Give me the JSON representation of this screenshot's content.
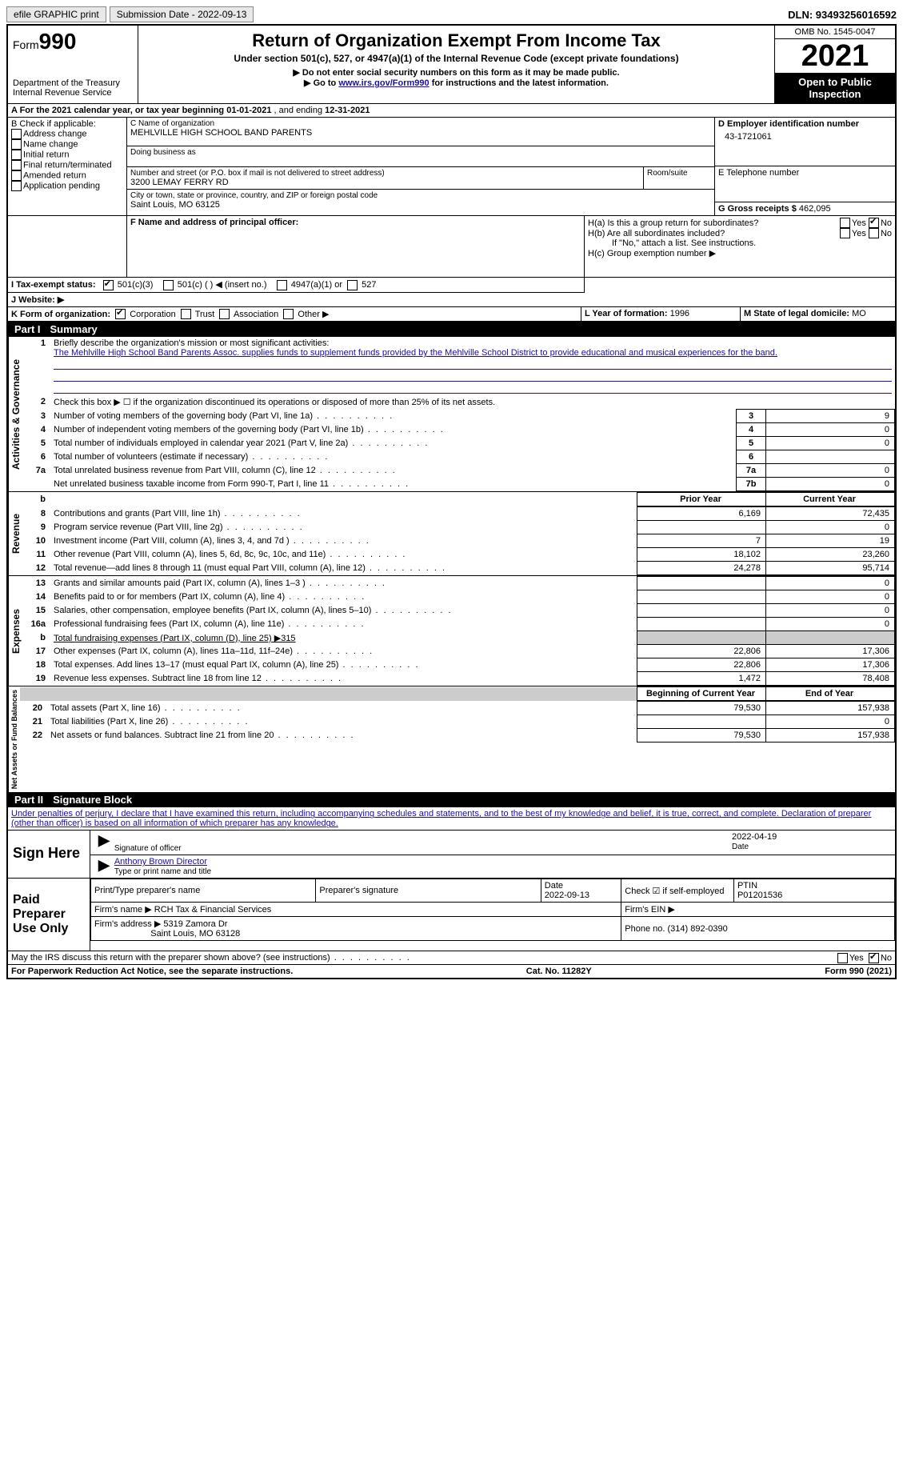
{
  "topbar": {
    "efile": "efile GRAPHIC print",
    "submission_label": "Submission Date - 2022-09-13",
    "dln_label": "DLN: 93493256016592"
  },
  "header": {
    "form_prefix": "Form",
    "form_number": "990",
    "dept": "Department of the Treasury",
    "irs": "Internal Revenue Service",
    "title": "Return of Organization Exempt From Income Tax",
    "subtitle": "Under section 501(c), 527, or 4947(a)(1) of the Internal Revenue Code (except private foundations)",
    "note1": "▶ Do not enter social security numbers on this form as it may be made public.",
    "note2_pre": "▶ Go to ",
    "note2_link": "www.irs.gov/Form990",
    "note2_post": " for instructions and the latest information.",
    "omb": "OMB No. 1545-0047",
    "year": "2021",
    "open": "Open to Public Inspection"
  },
  "periodA": {
    "text_pre": "A For the 2021 calendar year, or tax year beginning ",
    "begin": "01-01-2021",
    "mid": " , and ending ",
    "end": "12-31-2021"
  },
  "sectionB": {
    "label": "B Check if applicable:",
    "items": [
      "Address change",
      "Name change",
      "Initial return",
      "Final return/terminated",
      "Amended return",
      "Application pending"
    ]
  },
  "sectionC": {
    "name_label": "C Name of organization",
    "name": "MEHLVILLE HIGH SCHOOL BAND PARENTS",
    "dba_label": "Doing business as",
    "addr_label": "Number and street (or P.O. box if mail is not delivered to street address)",
    "room_label": "Room/suite",
    "addr": "3200 LEMAY FERRY RD",
    "city_label": "City or town, state or province, country, and ZIP or foreign postal code",
    "city": "Saint Louis, MO  63125"
  },
  "sectionD": {
    "label": "D Employer identification number",
    "value": "43-1721061"
  },
  "sectionE": {
    "label": "E Telephone number"
  },
  "sectionG": {
    "label": "G Gross receipts $",
    "value": "462,095"
  },
  "sectionF": {
    "label": "F Name and address of principal officer:"
  },
  "sectionH": {
    "a": "H(a)  Is this a group return for subordinates?",
    "b": "H(b)  Are all subordinates included?",
    "b_note": "If \"No,\" attach a list. See instructions.",
    "c": "H(c)  Group exemption number ▶",
    "yes": "Yes",
    "no": "No"
  },
  "sectionI": {
    "label": "I   Tax-exempt status:",
    "opts": [
      "501(c)(3)",
      "501(c) (  ) ◀ (insert no.)",
      "4947(a)(1) or",
      "527"
    ]
  },
  "sectionJ": {
    "label": "J   Website: ▶"
  },
  "sectionK": {
    "label": "K Form of organization:",
    "opts": [
      "Corporation",
      "Trust",
      "Association",
      "Other ▶"
    ]
  },
  "sectionL": {
    "label": "L Year of formation:",
    "value": "1996"
  },
  "sectionM": {
    "label": "M State of legal domicile:",
    "value": "MO"
  },
  "part1": {
    "num": "Part I",
    "title": "Summary"
  },
  "summary": {
    "l1_label": "Briefly describe the organization's mission or most significant activities:",
    "l1_text": "The Mehlville High School Band Parents Assoc. supplies funds to supplement funds provided by the Mehlville School District to provide educational and musical experiences for the band.",
    "l2": "Check this box ▶ ☐ if the organization discontinued its operations or disposed of more than 25% of its net assets.",
    "rows_gov": [
      {
        "n": "3",
        "t": "Number of voting members of the governing body (Part VI, line 1a)",
        "box": "3",
        "v": "9"
      },
      {
        "n": "4",
        "t": "Number of independent voting members of the governing body (Part VI, line 1b)",
        "box": "4",
        "v": "0"
      },
      {
        "n": "5",
        "t": "Total number of individuals employed in calendar year 2021 (Part V, line 2a)",
        "box": "5",
        "v": "0"
      },
      {
        "n": "6",
        "t": "Total number of volunteers (estimate if necessary)",
        "box": "6",
        "v": ""
      },
      {
        "n": "7a",
        "t": "Total unrelated business revenue from Part VIII, column (C), line 12",
        "box": "7a",
        "v": "0"
      },
      {
        "n": "",
        "t": "Net unrelated business taxable income from Form 990-T, Part I, line 11",
        "box": "7b",
        "v": "0"
      }
    ],
    "col_headers": {
      "prior": "Prior Year",
      "current": "Current Year",
      "begin": "Beginning of Current Year",
      "end": "End of Year"
    },
    "rows_rev": [
      {
        "n": "8",
        "t": "Contributions and grants (Part VIII, line 1h)",
        "p": "6,169",
        "c": "72,435"
      },
      {
        "n": "9",
        "t": "Program service revenue (Part VIII, line 2g)",
        "p": "",
        "c": "0"
      },
      {
        "n": "10",
        "t": "Investment income (Part VIII, column (A), lines 3, 4, and 7d )",
        "p": "7",
        "c": "19"
      },
      {
        "n": "11",
        "t": "Other revenue (Part VIII, column (A), lines 5, 6d, 8c, 9c, 10c, and 11e)",
        "p": "18,102",
        "c": "23,260"
      },
      {
        "n": "12",
        "t": "Total revenue—add lines 8 through 11 (must equal Part VIII, column (A), line 12)",
        "p": "24,278",
        "c": "95,714"
      }
    ],
    "rows_exp": [
      {
        "n": "13",
        "t": "Grants and similar amounts paid (Part IX, column (A), lines 1–3 )",
        "p": "",
        "c": "0"
      },
      {
        "n": "14",
        "t": "Benefits paid to or for members (Part IX, column (A), line 4)",
        "p": "",
        "c": "0"
      },
      {
        "n": "15",
        "t": "Salaries, other compensation, employee benefits (Part IX, column (A), lines 5–10)",
        "p": "",
        "c": "0"
      },
      {
        "n": "16a",
        "t": "Professional fundraising fees (Part IX, column (A), line 11e)",
        "p": "",
        "c": "0"
      },
      {
        "n": "b",
        "t": "Total fundraising expenses (Part IX, column (D), line 25) ▶315",
        "grey": true
      },
      {
        "n": "17",
        "t": "Other expenses (Part IX, column (A), lines 11a–11d, 11f–24e)",
        "p": "22,806",
        "c": "17,306"
      },
      {
        "n": "18",
        "t": "Total expenses. Add lines 13–17 (must equal Part IX, column (A), line 25)",
        "p": "22,806",
        "c": "17,306"
      },
      {
        "n": "19",
        "t": "Revenue less expenses. Subtract line 18 from line 12",
        "p": "1,472",
        "c": "78,408"
      }
    ],
    "rows_net": [
      {
        "n": "20",
        "t": "Total assets (Part X, line 16)",
        "p": "79,530",
        "c": "157,938"
      },
      {
        "n": "21",
        "t": "Total liabilities (Part X, line 26)",
        "p": "",
        "c": "0"
      },
      {
        "n": "22",
        "t": "Net assets or fund balances. Subtract line 21 from line 20",
        "p": "79,530",
        "c": "157,938"
      }
    ],
    "vlabels": {
      "gov": "Activities & Governance",
      "rev": "Revenue",
      "exp": "Expenses",
      "net": "Net Assets or Fund Balances"
    }
  },
  "part2": {
    "num": "Part II",
    "title": "Signature Block"
  },
  "sig": {
    "penalty": "Under penalties of perjury, I declare that I have examined this return, including accompanying schedules and statements, and to the best of my knowledge and belief, it is true, correct, and complete. Declaration of preparer (other than officer) is based on all information of which preparer has any knowledge.",
    "sign_here": "Sign Here",
    "sig_officer": "Signature of officer",
    "date": "Date",
    "date_val": "2022-04-19",
    "name_title": "Anthony Brown  Director",
    "name_label": "Type or print name and title",
    "paid": "Paid Preparer Use Only",
    "prep_name_label": "Print/Type preparer's name",
    "prep_sig_label": "Preparer's signature",
    "prep_date_label": "Date",
    "prep_date": "2022-09-13",
    "check_self": "Check ☑ if self-employed",
    "ptin_label": "PTIN",
    "ptin": "P01201536",
    "firm_name_label": "Firm's name    ▶",
    "firm_name": "RCH Tax & Financial Services",
    "firm_ein_label": "Firm's EIN ▶",
    "firm_addr_label": "Firm's address ▶",
    "firm_addr1": "5319 Zamora Dr",
    "firm_addr2": "Saint Louis, MO  63128",
    "phone_label": "Phone no.",
    "phone": "(314) 892-0390",
    "discuss": "May the IRS discuss this return with the preparer shown above? (see instructions)"
  },
  "footer": {
    "left": "For Paperwork Reduction Act Notice, see the separate instructions.",
    "center": "Cat. No. 11282Y",
    "right": "Form 990 (2021)"
  }
}
